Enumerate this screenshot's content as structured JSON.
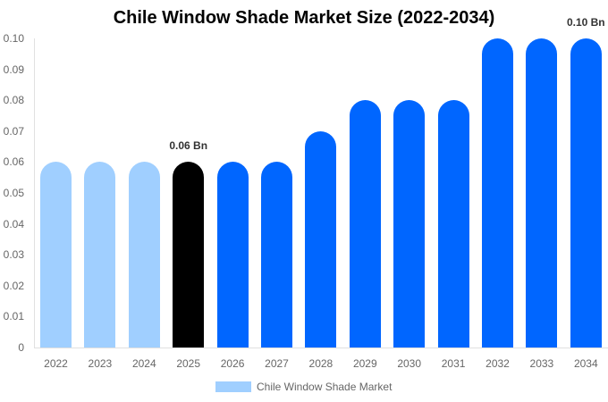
{
  "chart_data": {
    "type": "bar",
    "title": "Chile Window Shade Market Size (2022-2034)",
    "xlabel": "",
    "ylabel": "",
    "ylim": [
      0,
      0.1
    ],
    "yticks": [
      "0",
      "0.01",
      "0.02",
      "0.03",
      "0.04",
      "0.05",
      "0.06",
      "0.07",
      "0.08",
      "0.09",
      "0.10"
    ],
    "categories": [
      "2022",
      "2023",
      "2024",
      "2025",
      "2026",
      "2027",
      "2028",
      "2029",
      "2030",
      "2031",
      "2032",
      "2033",
      "2034"
    ],
    "series": [
      {
        "name": "Chile Window Shade Market",
        "values": [
          0.06,
          0.06,
          0.06,
          0.06,
          0.06,
          0.06,
          0.07,
          0.08,
          0.08,
          0.08,
          0.1,
          0.1,
          0.1
        ]
      }
    ],
    "bar_colors": [
      "#a0cfff",
      "#a0cfff",
      "#a0cfff",
      "#000000",
      "#0066ff",
      "#0066ff",
      "#0066ff",
      "#0066ff",
      "#0066ff",
      "#0066ff",
      "#0066ff",
      "#0066ff",
      "#0066ff"
    ],
    "annotations": [
      {
        "category": "2025",
        "text": "0.06 Bn"
      },
      {
        "category": "2034",
        "text": "0.10 Bn"
      }
    ],
    "legend_position": "bottom",
    "grid": false
  },
  "legend": {
    "label": "Chile Window Shade Market",
    "color": "#a0cfff"
  }
}
